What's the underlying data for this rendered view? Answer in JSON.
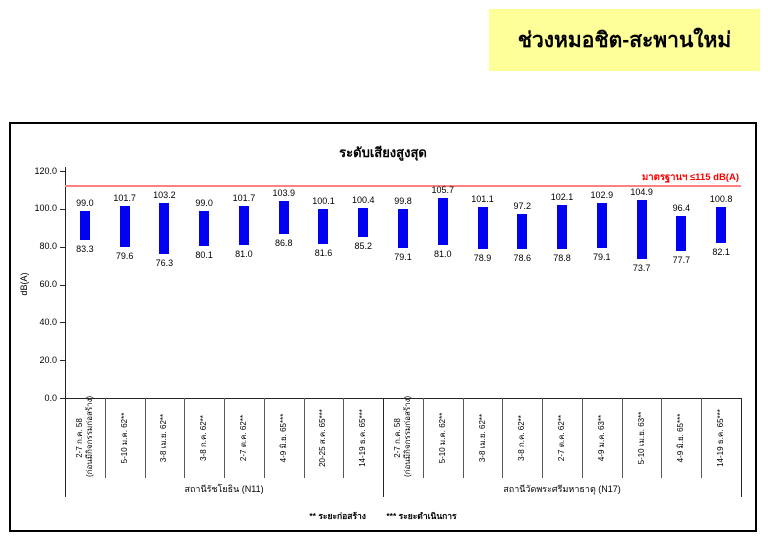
{
  "banner": {
    "title": "ช่วงหมอชิต-สะพานใหม่",
    "bg_color": "#FFFF99"
  },
  "chart_data": {
    "type": "bar",
    "subtype": "floating-range-bar",
    "title": "ระดับเสียงสูงสุด",
    "ylabel": "dB(A)",
    "ylim": [
      0,
      120
    ],
    "yticks": [
      0,
      20,
      40,
      60,
      80,
      100,
      120
    ],
    "grid": false,
    "bar_color": "#0202F0",
    "standard_line": {
      "limit": 115,
      "drawn_at": 112,
      "label": "มาตรฐานฯ ≤115 dB(A)",
      "line_color": "#FF8080",
      "label_color": "#FF0000"
    },
    "groups": [
      {
        "label": "สถานีรัชโยธิน (N11)",
        "count": 8
      },
      {
        "label": "สถานีวัดพระศรีมหาธาตุ (N17)",
        "count": 9
      }
    ],
    "categories": [
      [
        "2-7 ก.ค. 58",
        "(ก่อนมีกิจกรรมก่อสร้าง)"
      ],
      [
        "5-10 ม.ค. 62**"
      ],
      [
        "3-8 เม.ย. 62**"
      ],
      [
        "3-8 ก.ค. 62**"
      ],
      [
        "2-7 ต.ค. 62**"
      ],
      [
        "4-9 มิ.ย. 65***"
      ],
      [
        "20-25 ส.ค. 65***"
      ],
      [
        "14-19 ธ.ค. 65***"
      ],
      [
        "2-7 ก.ค. 58",
        "(ก่อนมีกิจกรรมก่อสร้าง)"
      ],
      [
        "5-10 ม.ค. 62**"
      ],
      [
        "3-8 เม.ย. 62**"
      ],
      [
        "3-8 ก.ค. 62**"
      ],
      [
        "2-7 ต.ค. 62**"
      ],
      [
        "4-9 ม.ค. 63**"
      ],
      [
        "5-10 เม.ย. 63**"
      ],
      [
        "4-9 มิ.ย. 65***"
      ],
      [
        "14-19 ธ.ค. 65***"
      ]
    ],
    "series": [
      {
        "name": "max",
        "values": [
          99.0,
          101.7,
          103.2,
          99.0,
          101.7,
          103.9,
          100.1,
          100.4,
          99.8,
          105.7,
          101.1,
          97.2,
          102.1,
          102.9,
          104.9,
          96.4,
          100.8
        ]
      },
      {
        "name": "min",
        "values": [
          83.3,
          79.6,
          76.3,
          80.1,
          81.0,
          86.8,
          81.6,
          85.2,
          79.1,
          81.0,
          78.9,
          78.6,
          78.8,
          79.1,
          73.7,
          77.7,
          82.1
        ]
      }
    ],
    "footnotes": [
      "** ระยะก่อสร้าง",
      "*** ระยะดำเนินการ"
    ]
  }
}
